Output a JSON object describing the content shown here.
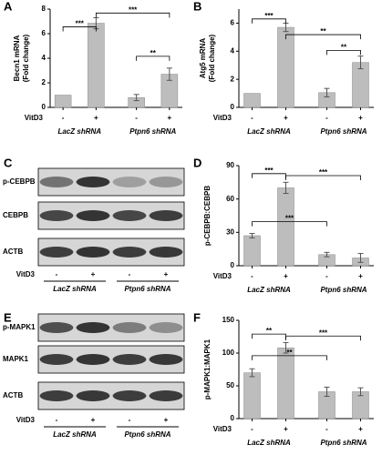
{
  "chart_data": [
    {
      "type": "bar",
      "panel": "A",
      "ylabel": [
        "Becn1 mRNA",
        "(Fold change)"
      ],
      "categories": [
        "-",
        "+",
        "-",
        "+"
      ],
      "treatment_label": "VitD3",
      "group_labels": [
        "LacZ shRNA",
        "Ptpn6 shRNA"
      ],
      "values": [
        1.0,
        6.85,
        0.8,
        2.7
      ],
      "errors": [
        null,
        0.45,
        0.25,
        0.5
      ],
      "color": "#bdbdbd",
      "ylim": [
        0,
        8
      ],
      "yticks": [
        0,
        2,
        4,
        6,
        8
      ],
      "annotations": [
        "***",
        "***",
        "**"
      ]
    },
    {
      "type": "bar",
      "panel": "B",
      "ylabel": [
        "Atg5 mRNA",
        "(Fold change)"
      ],
      "categories": [
        "-",
        "+",
        "-",
        "+"
      ],
      "treatment_label": "VitD3",
      "group_labels": [
        "LacZ shRNA",
        "Ptpn6 shRNA"
      ],
      "values": [
        1.0,
        5.7,
        1.05,
        3.2
      ],
      "errors": [
        null,
        0.3,
        0.3,
        0.45
      ],
      "color": "#bdbdbd",
      "ylim": [
        0,
        7
      ],
      "yticks": [
        0,
        2,
        4,
        6
      ],
      "annotations": [
        "***",
        "**",
        "**"
      ]
    },
    {
      "type": "bar",
      "panel": "D",
      "ylabel": [
        "p-CEBPB:CEBPB"
      ],
      "categories": [
        "-",
        "+",
        "-",
        "+"
      ],
      "treatment_label": "VitD3",
      "group_labels": [
        "LacZ shRNA",
        "Ptpn6 shRNA"
      ],
      "values": [
        27,
        70,
        10,
        7
      ],
      "errors": [
        2,
        5,
        2,
        4
      ],
      "color": "#bdbdbd",
      "ylim": [
        0,
        90
      ],
      "yticks": [
        0,
        30,
        60,
        90
      ],
      "annotations": [
        "***",
        "***",
        "***"
      ]
    },
    {
      "type": "bar",
      "panel": "F",
      "ylabel": [
        "p-MAPK1:MAPK1"
      ],
      "categories": [
        "-",
        "+",
        "-",
        "+"
      ],
      "treatment_label": "VitD3",
      "group_labels": [
        "LacZ shRNA",
        "Ptpn6 shRNA"
      ],
      "values": [
        70,
        108,
        41,
        41
      ],
      "errors": [
        6,
        8,
        7,
        6
      ],
      "color": "#bdbdbd",
      "ylim": [
        0,
        150
      ],
      "yticks": [
        0,
        50,
        100,
        150
      ],
      "annotations": [
        "**",
        "***",
        "**"
      ]
    }
  ],
  "blots": [
    {
      "panel": "C",
      "rows": [
        "p-CEBPB",
        "CEBPB",
        "ACTB"
      ],
      "lanes": [
        "-",
        "+",
        "-",
        "+"
      ],
      "treatment_label": "VitD3",
      "group_labels": [
        "LacZ shRNA",
        "Ptpn6 shRNA"
      ]
    },
    {
      "panel": "E",
      "rows": [
        "p-MAPK1",
        "MAPK1",
        "ACTB"
      ],
      "lanes": [
        "-",
        "+",
        "-",
        "+"
      ],
      "treatment_label": "VitD3",
      "group_labels": [
        "LacZ shRNA",
        "Ptpn6 shRNA"
      ]
    }
  ]
}
